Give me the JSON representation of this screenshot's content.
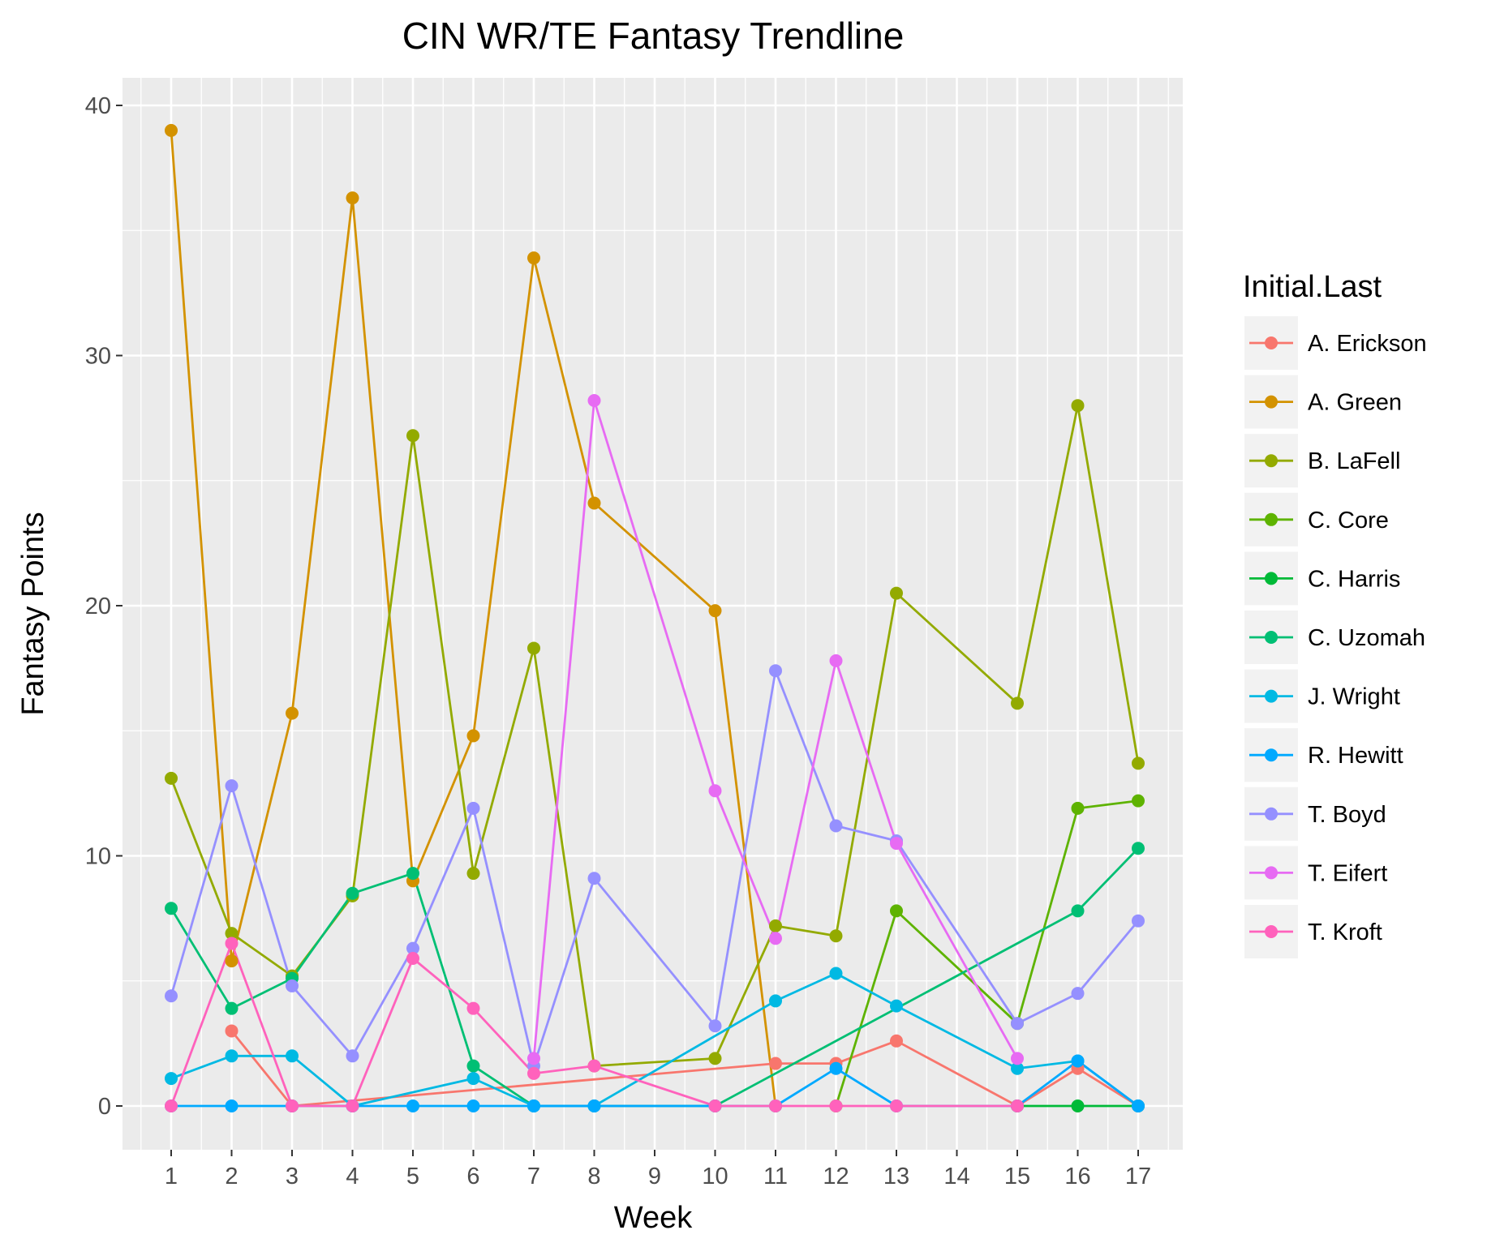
{
  "chart_data": {
    "type": "line",
    "title": "CIN WR/TE Fantasy Trendline",
    "xlabel": "Week",
    "ylabel": "Fantasy Points",
    "x": [
      "1",
      "2",
      "3",
      "4",
      "5",
      "6",
      "7",
      "8",
      "9",
      "10",
      "11",
      "12",
      "13",
      "14",
      "15",
      "16",
      "17"
    ],
    "yticks": [
      "0",
      "10",
      "20",
      "30",
      "40"
    ],
    "ylim": [
      -2,
      42
    ],
    "legend_title": "Initial.Last",
    "legend_position": "right",
    "grid": true,
    "series": [
      {
        "name": "A. Erickson",
        "color": "#F8766D",
        "points": [
          [
            2,
            3.0
          ],
          [
            3,
            0
          ],
          [
            11,
            1.7
          ],
          [
            12,
            1.7
          ],
          [
            13,
            2.6
          ],
          [
            15,
            0
          ],
          [
            16,
            1.5
          ],
          [
            17,
            0
          ]
        ]
      },
      {
        "name": "A. Green",
        "color": "#D39200",
        "points": [
          [
            1,
            39.0
          ],
          [
            2,
            5.8
          ],
          [
            3,
            15.7
          ],
          [
            4,
            36.3
          ],
          [
            5,
            9.0
          ],
          [
            6,
            14.8
          ],
          [
            7,
            33.9
          ],
          [
            8,
            24.1
          ],
          [
            10,
            19.8
          ],
          [
            11,
            0
          ]
        ]
      },
      {
        "name": "B. LaFell",
        "color": "#93AA00",
        "points": [
          [
            1,
            13.1
          ],
          [
            2,
            6.9
          ],
          [
            3,
            5.2
          ],
          [
            4,
            8.4
          ],
          [
            5,
            26.8
          ],
          [
            6,
            9.3
          ],
          [
            7,
            18.3
          ],
          [
            8,
            1.6
          ],
          [
            10,
            1.9
          ],
          [
            11,
            7.2
          ],
          [
            12,
            6.8
          ],
          [
            13,
            20.5
          ],
          [
            15,
            16.1
          ],
          [
            16,
            28.0
          ],
          [
            17,
            13.7
          ]
        ]
      },
      {
        "name": "C. Core",
        "color": "#5EB300",
        "points": [
          [
            12,
            0
          ],
          [
            13,
            7.8
          ],
          [
            15,
            3.3
          ],
          [
            16,
            11.9
          ],
          [
            17,
            12.2
          ]
        ]
      },
      {
        "name": "C. Harris",
        "color": "#00BA38",
        "points": [
          [
            15,
            0
          ],
          [
            16,
            0
          ],
          [
            17,
            0
          ]
        ]
      },
      {
        "name": "C. Uzomah",
        "color": "#00BF74",
        "points": [
          [
            1,
            7.9
          ],
          [
            2,
            3.9
          ],
          [
            3,
            5.1
          ],
          [
            4,
            8.5
          ],
          [
            5,
            9.3
          ],
          [
            6,
            1.6
          ],
          [
            7,
            0
          ],
          [
            8,
            0
          ],
          [
            10,
            0
          ],
          [
            16,
            7.8
          ],
          [
            17,
            10.3
          ]
        ]
      },
      {
        "name": "J. Wright",
        "color": "#00B9E3",
        "points": [
          [
            1,
            1.1
          ],
          [
            2,
            2.0
          ],
          [
            3,
            2.0
          ],
          [
            4,
            0
          ],
          [
            6,
            1.1
          ],
          [
            7,
            0
          ],
          [
            8,
            0
          ],
          [
            11,
            4.2
          ],
          [
            12,
            5.3
          ],
          [
            13,
            4.0
          ],
          [
            15,
            1.5
          ],
          [
            16,
            1.8
          ],
          [
            17,
            0
          ]
        ]
      },
      {
        "name": "R. Hewitt",
        "color": "#00A9FF",
        "points": [
          [
            1,
            0
          ],
          [
            2,
            0
          ],
          [
            3,
            0
          ],
          [
            4,
            0
          ],
          [
            5,
            0
          ],
          [
            6,
            0
          ],
          [
            7,
            0
          ],
          [
            8,
            0
          ],
          [
            10,
            0
          ],
          [
            11,
            0
          ],
          [
            12,
            1.5
          ],
          [
            13,
            0
          ],
          [
            15,
            0
          ],
          [
            16,
            1.8
          ],
          [
            17,
            0
          ]
        ]
      },
      {
        "name": "T. Boyd",
        "color": "#9590FF",
        "points": [
          [
            1,
            4.4
          ],
          [
            2,
            12.8
          ],
          [
            3,
            4.8
          ],
          [
            4,
            2.0
          ],
          [
            5,
            6.3
          ],
          [
            6,
            11.9
          ],
          [
            7,
            1.6
          ],
          [
            8,
            9.1
          ],
          [
            10,
            3.2
          ],
          [
            11,
            17.4
          ],
          [
            12,
            11.2
          ],
          [
            13,
            10.6
          ],
          [
            15,
            3.3
          ],
          [
            16,
            4.5
          ],
          [
            17,
            7.4
          ]
        ]
      },
      {
        "name": "T. Eifert",
        "color": "#E76BF3",
        "points": [
          [
            7,
            1.9
          ],
          [
            8,
            28.2
          ],
          [
            10,
            12.6
          ],
          [
            11,
            6.7
          ],
          [
            12,
            17.8
          ],
          [
            13,
            10.5
          ],
          [
            15,
            1.9
          ]
        ]
      },
      {
        "name": "T. Kroft",
        "color": "#FF62BC",
        "points": [
          [
            1,
            0
          ],
          [
            2,
            6.5
          ],
          [
            3,
            0
          ],
          [
            4,
            0
          ],
          [
            5,
            5.9
          ],
          [
            6,
            3.9
          ],
          [
            7,
            1.3
          ],
          [
            8,
            1.6
          ],
          [
            10,
            0
          ],
          [
            11,
            0
          ],
          [
            12,
            0
          ],
          [
            13,
            0
          ],
          [
            15,
            0
          ]
        ]
      }
    ]
  }
}
